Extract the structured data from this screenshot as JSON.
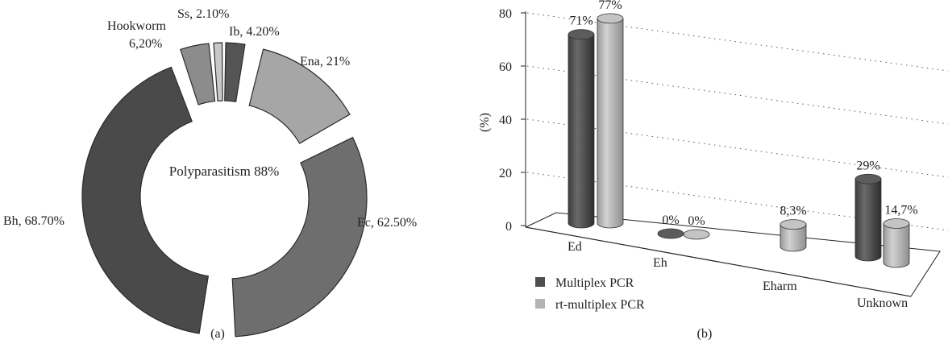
{
  "chart_data": [
    {
      "type": "pie",
      "variant": "donut-exploded",
      "caption": "(a)",
      "center_label": "Polyparasitism 88%",
      "slices": [
        {
          "name": "Bh",
          "value": 68.7,
          "label": "Bh, 68.70%",
          "color": "#4a4a4a"
        },
        {
          "name": "Hookworm",
          "value": 6.2,
          "label_line1": "Hookworm",
          "label_line2": "6,20%",
          "color": "#8c8c8c"
        },
        {
          "name": "Ss",
          "value": 2.1,
          "label": "Ss, 2.10%",
          "color": "#c8c8c8"
        },
        {
          "name": "Ib",
          "value": 4.2,
          "label": "Ib, 4.20%",
          "color": "#555555"
        },
        {
          "name": "Ena",
          "value": 21,
          "label": "Ena, 21%",
          "color": "#a6a6a6"
        },
        {
          "name": "Ec",
          "value": 62.5,
          "label": "Ec, 62.50%",
          "color": "#6e6e6e"
        }
      ]
    },
    {
      "type": "bar",
      "variant": "3d-cylinder",
      "caption": "(b)",
      "ylabel": "(%)",
      "ylim": [
        0,
        80
      ],
      "yticks": [
        "0",
        "20",
        "40",
        "60",
        "80"
      ],
      "grid": true,
      "legend_position": "bottom-left",
      "categories": [
        "Ed",
        "Eh",
        "Eharm",
        "Unknown"
      ],
      "series": [
        {
          "name": "Multiplex PCR",
          "color": "#4f4f4f",
          "values": [
            71,
            0,
            null,
            29
          ],
          "labels": [
            "71%",
            "0%",
            "",
            "29%"
          ]
        },
        {
          "name": "rt-multiplex PCR",
          "color": "#b3b3b3",
          "values": [
            77,
            0,
            8.3,
            14.7
          ],
          "labels": [
            "77%",
            "0%",
            "8,3%",
            "14,7%"
          ]
        }
      ]
    }
  ]
}
